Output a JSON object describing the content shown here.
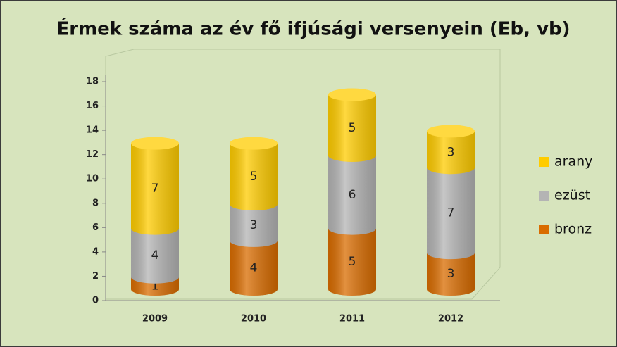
{
  "chart_data": {
    "type": "bar",
    "stacked": true,
    "title": "Érmek száma az év fő ifjúsági versenyein (Eb, vb)",
    "categories": [
      "2009",
      "2010",
      "2011",
      "2012"
    ],
    "series": [
      {
        "name": "bronz",
        "color": "#d96c00",
        "values": [
          1,
          4,
          5,
          3
        ]
      },
      {
        "name": "ezüst",
        "color": "#b4b4b4",
        "values": [
          4,
          3,
          6,
          7
        ]
      },
      {
        "name": "arany",
        "color": "#ffcc00",
        "values": [
          7,
          5,
          5,
          3
        ]
      }
    ],
    "ylim": [
      0,
      18
    ],
    "yticks": [
      0,
      2,
      4,
      6,
      8,
      10,
      12,
      14,
      16,
      18
    ],
    "legend": "right"
  }
}
